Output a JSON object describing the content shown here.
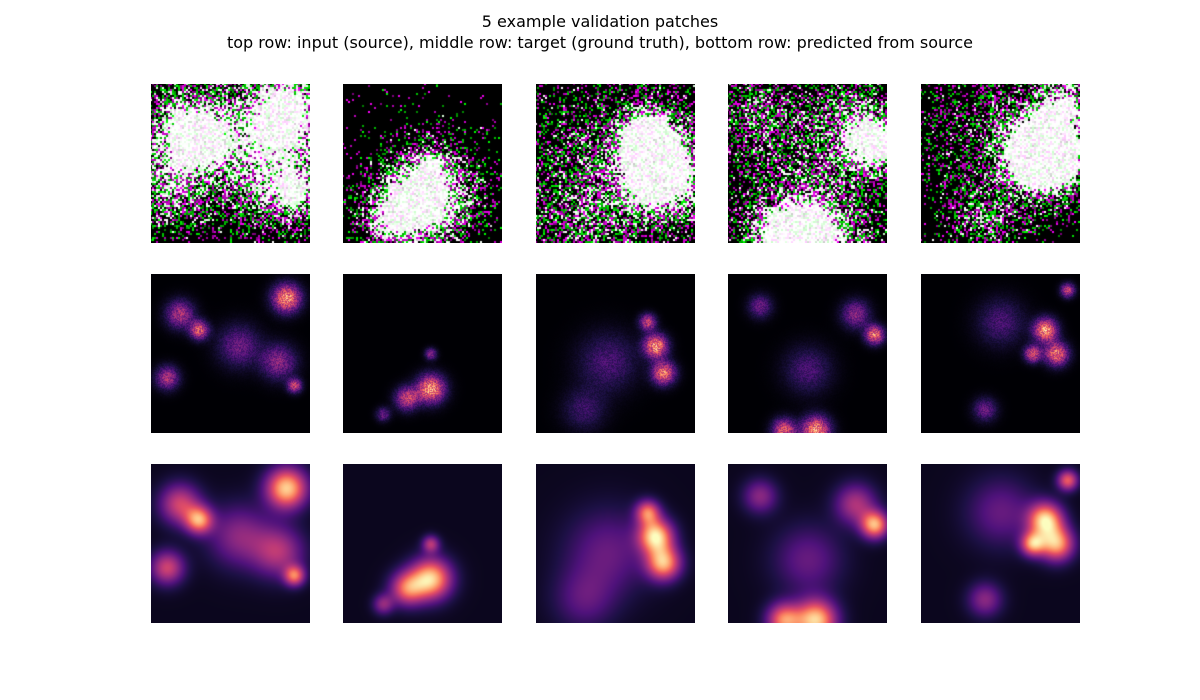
{
  "figure": {
    "title_line1": "5 example validation patches",
    "title_line2": "top row: input (source),  middle row: target (ground truth),  bottom row: predicted from source"
  },
  "rows": [
    {
      "name": "input (source)",
      "kind": "source"
    },
    {
      "name": "target (ground truth)",
      "kind": "target"
    },
    {
      "name": "predicted from source",
      "kind": "pred"
    }
  ],
  "colors": {
    "source_green": "#22dd22",
    "source_magenta": "#dd22dd",
    "magma_low": "#000004",
    "magma_mid": "#b5367a",
    "magma_high": "#fcfdbf"
  },
  "patches": [
    {
      "index": 1,
      "blobs": [
        [
          0.18,
          0.25,
          0.12,
          0.6
        ],
        [
          0.85,
          0.15,
          0.12,
          1.0
        ],
        [
          0.55,
          0.45,
          0.18,
          0.4
        ],
        [
          0.8,
          0.55,
          0.15,
          0.5
        ],
        [
          0.1,
          0.65,
          0.1,
          0.6
        ],
        [
          0.3,
          0.35,
          0.08,
          0.8
        ],
        [
          0.9,
          0.7,
          0.06,
          0.7
        ]
      ]
    },
    {
      "index": 2,
      "blobs": [
        [
          0.55,
          0.72,
          0.12,
          1.0
        ],
        [
          0.4,
          0.78,
          0.1,
          0.7
        ],
        [
          0.55,
          0.5,
          0.05,
          0.5
        ],
        [
          0.25,
          0.88,
          0.06,
          0.4
        ]
      ]
    },
    {
      "index": 3,
      "blobs": [
        [
          0.75,
          0.45,
          0.1,
          1.0
        ],
        [
          0.8,
          0.62,
          0.1,
          0.9
        ],
        [
          0.7,
          0.3,
          0.07,
          0.7
        ],
        [
          0.45,
          0.55,
          0.25,
          0.3
        ],
        [
          0.3,
          0.85,
          0.18,
          0.25
        ]
      ]
    },
    {
      "index": 4,
      "blobs": [
        [
          0.55,
          0.98,
          0.12,
          1.0
        ],
        [
          0.35,
          0.98,
          0.1,
          0.8
        ],
        [
          0.92,
          0.38,
          0.08,
          0.9
        ],
        [
          0.8,
          0.25,
          0.12,
          0.5
        ],
        [
          0.2,
          0.2,
          0.1,
          0.4
        ],
        [
          0.5,
          0.6,
          0.2,
          0.3
        ]
      ]
    },
    {
      "index": 5,
      "blobs": [
        [
          0.78,
          0.35,
          0.1,
          1.0
        ],
        [
          0.85,
          0.5,
          0.1,
          0.9
        ],
        [
          0.7,
          0.5,
          0.07,
          0.8
        ],
        [
          0.92,
          0.1,
          0.06,
          0.7
        ],
        [
          0.5,
          0.3,
          0.2,
          0.3
        ],
        [
          0.4,
          0.85,
          0.1,
          0.4
        ]
      ]
    }
  ]
}
